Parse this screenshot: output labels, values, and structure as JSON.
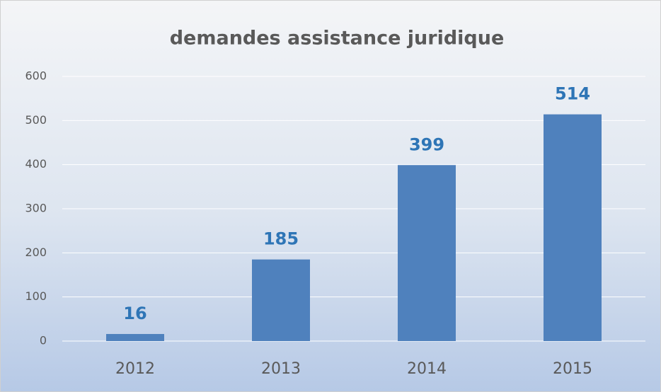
{
  "chart_data": {
    "type": "bar",
    "title": "demandes assistance juridique",
    "categories": [
      "2012",
      "2013",
      "2014",
      "2015"
    ],
    "values": [
      16,
      185,
      399,
      514
    ],
    "color": "#4f81bd",
    "label_color": "#2e75b6",
    "ylim": [
      0,
      600
    ],
    "yticks": [
      0,
      100,
      200,
      300,
      400,
      500,
      600
    ],
    "grid": true
  }
}
